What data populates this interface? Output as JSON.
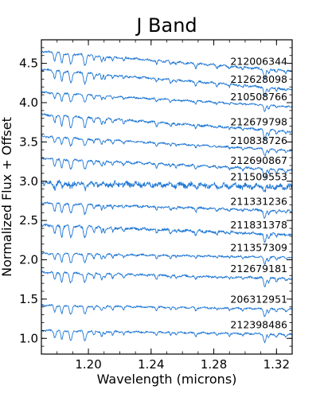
{
  "chart_data": {
    "type": "line",
    "title": "J Band",
    "xlabel": "Wavelength (microns)",
    "ylabel": "Normalized Flux + Offset",
    "xlim": [
      1.17,
      1.33
    ],
    "ylim": [
      0.8,
      4.8
    ],
    "x_ticks": [
      1.2,
      1.24,
      1.28,
      1.32
    ],
    "x_tick_labels": [
      "1.20",
      "1.24",
      "1.28",
      "1.32"
    ],
    "y_ticks": [
      1.0,
      1.5,
      2.0,
      2.5,
      3.0,
      3.5,
      4.0,
      4.5
    ],
    "y_tick_labels": [
      "1.0",
      "1.5",
      "2.0",
      "2.5",
      "3.0",
      "3.5",
      "4.0",
      "4.5"
    ],
    "grid": false,
    "line_color": "#1f77d4",
    "series": [
      {
        "name": "212006344",
        "offset": 4.65,
        "slope": -0.25,
        "noise": 0.012,
        "depth": 1.0
      },
      {
        "name": "212628098",
        "offset": 4.42,
        "slope": -0.25,
        "noise": 0.012,
        "depth": 1.0
      },
      {
        "name": "210508766",
        "offset": 4.13,
        "slope": -0.18,
        "noise": 0.01,
        "depth": 0.7
      },
      {
        "name": "212679798",
        "offset": 3.85,
        "slope": -0.22,
        "noise": 0.012,
        "depth": 1.0
      },
      {
        "name": "210838726",
        "offset": 3.57,
        "slope": -0.18,
        "noise": 0.01,
        "depth": 0.7
      },
      {
        "name": "212690867",
        "offset": 3.29,
        "slope": -0.15,
        "noise": 0.012,
        "depth": 0.9
      },
      {
        "name": "211509553",
        "offset": 2.98,
        "slope": -0.05,
        "noise": 0.03,
        "depth": 0.5
      },
      {
        "name": "211331236",
        "offset": 2.72,
        "slope": -0.1,
        "noise": 0.012,
        "depth": 0.9
      },
      {
        "name": "211831378",
        "offset": 2.44,
        "slope": -0.12,
        "noise": 0.015,
        "depth": 1.0
      },
      {
        "name": "211357309",
        "offset": 2.08,
        "slope": -0.05,
        "noise": 0.01,
        "depth": 0.8
      },
      {
        "name": "212679181",
        "offset": 1.84,
        "slope": -0.08,
        "noise": 0.012,
        "depth": 0.9
      },
      {
        "name": "206312951",
        "offset": 1.42,
        "slope": -0.05,
        "noise": 0.01,
        "depth": 0.8
      },
      {
        "name": "212398486",
        "offset": 1.1,
        "slope": -0.05,
        "noise": 0.01,
        "depth": 0.9
      }
    ]
  }
}
